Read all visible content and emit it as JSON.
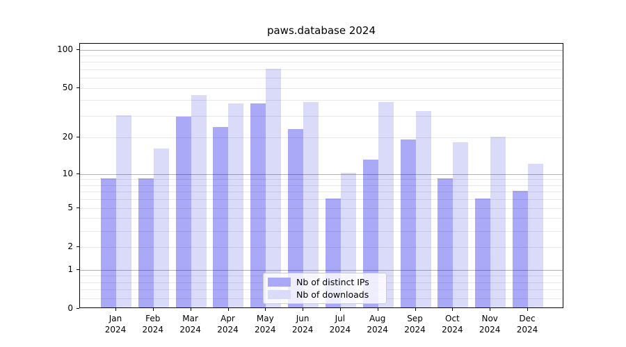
{
  "title": "paws.database 2024",
  "colors": {
    "ips": "#a9a9f7",
    "downloads": "#dadaf9",
    "axis": "#000000",
    "legend_border": "#cccccc"
  },
  "chart_data": {
    "type": "bar",
    "title": "paws.database 2024",
    "categories": [
      "Jan",
      "Feb",
      "Mar",
      "Apr",
      "May",
      "Jun",
      "Jul",
      "Aug",
      "Sep",
      "Oct",
      "Nov",
      "Dec"
    ],
    "year_label": "2024",
    "series": [
      {
        "name": "Nb of distinct IPs",
        "color_key": "ips",
        "values": [
          9,
          9,
          29,
          24,
          37,
          23,
          6,
          13,
          19,
          9,
          6,
          7
        ]
      },
      {
        "name": "Nb of downloads",
        "color_key": "downloads",
        "values": [
          30,
          16,
          43,
          37,
          70,
          38,
          10,
          38,
          32,
          18,
          20,
          12
        ]
      }
    ],
    "yscale": "log10(1+x)",
    "yticks": [
      0,
      1,
      2,
      5,
      10,
      20,
      50,
      100
    ],
    "ytick_major": [
      1,
      10,
      100
    ],
    "ytick_minor": [
      0.2,
      0.4,
      0.6,
      0.8,
      2,
      3,
      4,
      5,
      6,
      7,
      8,
      9,
      20,
      30,
      40,
      50,
      60,
      70,
      80,
      90
    ],
    "ylim": [
      0,
      111
    ],
    "grid": true,
    "legend_position": "lower-center"
  }
}
